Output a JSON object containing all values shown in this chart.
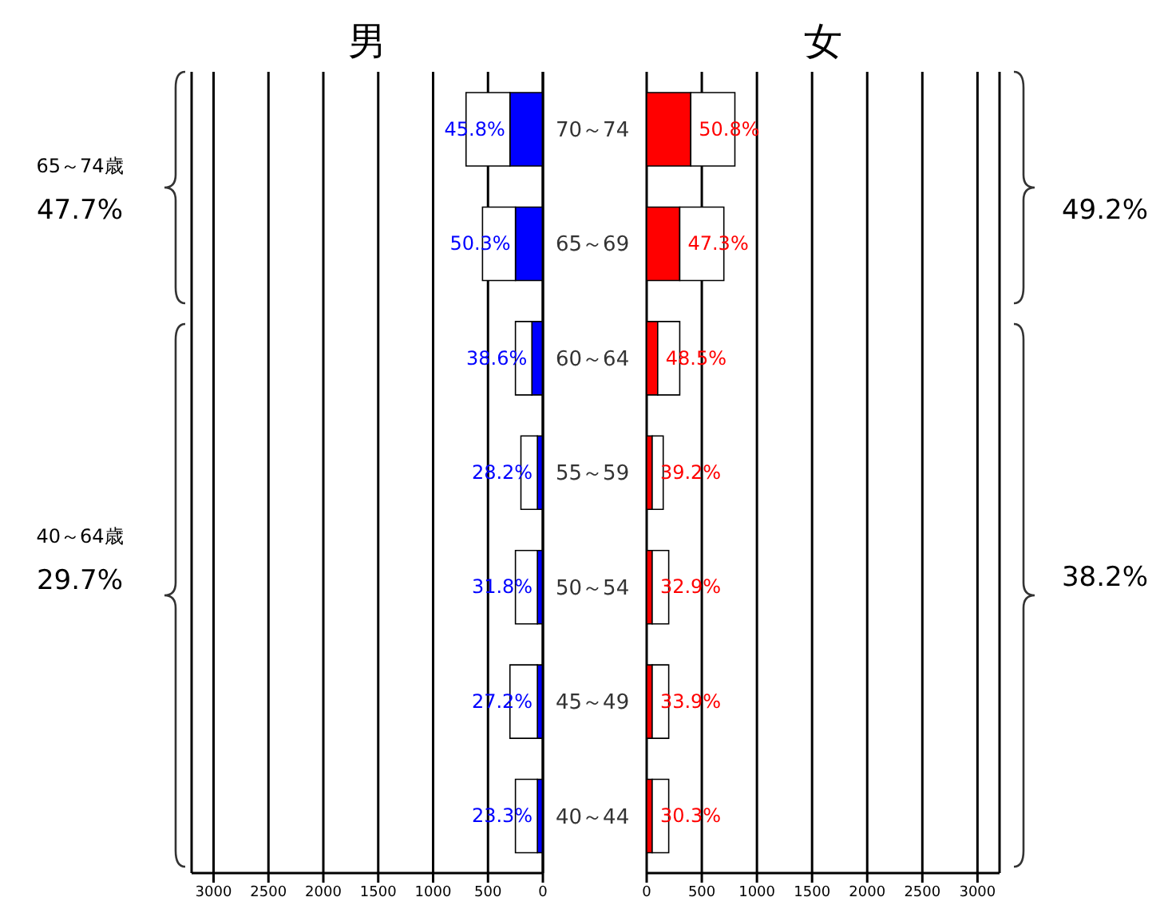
{
  "chart_data": [
    {
      "type": "bar",
      "orientation": "horizontal",
      "stacked": true,
      "title": "男",
      "categories": [
        "70～74",
        "65～69",
        "60～64",
        "55～59",
        "50～54",
        "45～49",
        "40～44"
      ],
      "series": [
        {
          "color": "#0000ff",
          "values": [
            300,
            250,
            100,
            50,
            50,
            50,
            50
          ]
        },
        {
          "color": "#ffffff",
          "values": [
            400,
            300,
            150,
            150,
            200,
            250,
            200
          ]
        }
      ],
      "xlim": [
        3200,
        0
      ],
      "xticks": [
        3000,
        2500,
        2000,
        1500,
        1000,
        500,
        0
      ],
      "grid": "x",
      "annotations": [
        "65～74歳",
        "47.7%",
        "40～64歳",
        "29.7%",
        {
          "text": "45.8%",
          "x": 300,
          "y": "70～74"
        },
        {
          "text": "50.3%",
          "x": 250,
          "y": "65～69"
        },
        {
          "text": "38.6%",
          "x": 100,
          "y": "60～64"
        },
        {
          "text": "28.2%",
          "x": 50,
          "y": "55～59"
        },
        {
          "text": "31.8%",
          "x": 50,
          "y": "50～54"
        },
        {
          "text": "27.2%",
          "x": 50,
          "y": "45～49"
        },
        {
          "text": "23.3%",
          "x": 50,
          "y": "40～44"
        }
      ]
    },
    {
      "type": "bar",
      "orientation": "horizontal",
      "stacked": true,
      "title": "女",
      "categories": [
        "70～74",
        "65～69",
        "60～64",
        "55～59",
        "50～54",
        "45～49",
        "40～44"
      ],
      "series": [
        {
          "color": "#ff0000",
          "values": [
            400,
            300,
            100,
            50,
            50,
            50,
            50
          ]
        },
        {
          "color": "#ffffff",
          "values": [
            400,
            400,
            200,
            100,
            150,
            150,
            150
          ]
        }
      ],
      "xlim": [
        0,
        3200
      ],
      "xticks": [
        0,
        500,
        1000,
        1500,
        2000,
        2500,
        3000
      ],
      "grid": "x",
      "tick_labels": "x",
      "annotations": [
        "49.2%",
        "38.2%",
        {
          "text": "50.8%",
          "x": 400,
          "y": "70～74"
        },
        {
          "text": "47.3%",
          "x": 300,
          "y": "65～69"
        },
        {
          "text": "48.5%",
          "x": 100,
          "y": "60～64"
        },
        {
          "text": "39.2%",
          "x": 50,
          "y": "55～59"
        },
        {
          "text": "32.9%",
          "x": 50,
          "y": "50～54"
        },
        {
          "text": "33.9%",
          "x": 50,
          "y": "45～49"
        },
        {
          "text": "30.3%",
          "x": 50,
          "y": "40～44"
        }
      ]
    }
  ]
}
